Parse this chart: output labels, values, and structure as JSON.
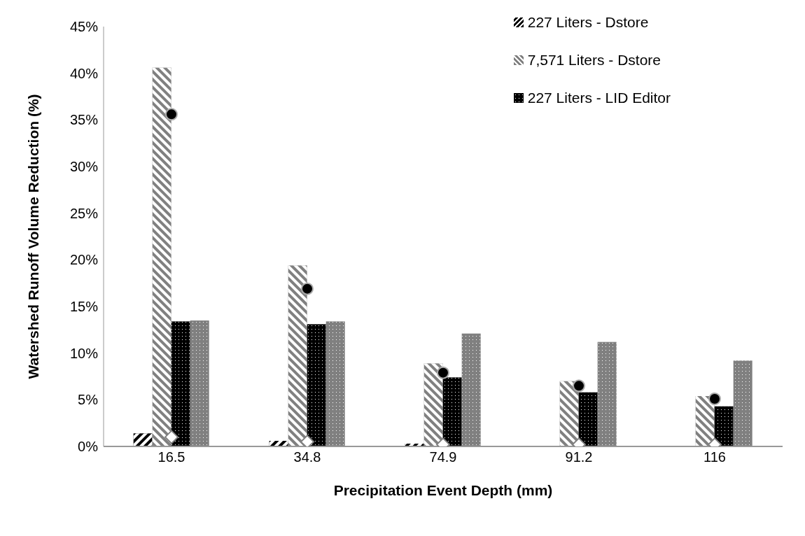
{
  "chart_data": {
    "type": "bar",
    "xlabel": "Precipitation Event Depth (mm)",
    "ylabel": "Watershed Runoff  Volume Reduction (%)",
    "categories": [
      "16.5",
      "34.8",
      "74.9",
      "91.2",
      "116"
    ],
    "series": [
      {
        "name": "227 Liters - Dstore",
        "color": "#000000",
        "values": [
          1.4,
          0.6,
          0.3,
          0,
          0
        ]
      },
      {
        "name": "7,571 Liters - Dstore",
        "color": "#808080",
        "values": [
          40.6,
          19.4,
          8.9,
          7.0,
          5.4
        ]
      },
      {
        "name": "227 Liters - LID Editor",
        "color": "#000000",
        "values": [
          13.4,
          13.1,
          7.4,
          5.8,
          4.3
        ]
      },
      {
        "color": "#808080",
        "values": [
          13.5,
          13.4,
          12.1,
          11.2,
          9.2
        ]
      },
      {
        "type": "scatter",
        "marker": "circle",
        "color": "#000000",
        "values": [
          35.6,
          16.9,
          7.9,
          6.5,
          5.1
        ]
      },
      {
        "type": "scatter",
        "marker": "diamond",
        "color": "#ffffff",
        "values": [
          1.0,
          0.5,
          0.2,
          0.2,
          0.2
        ]
      }
    ],
    "ylim": [
      0,
      45
    ],
    "yticks": [
      {
        "value": 0,
        "label": "0%"
      },
      {
        "value": 5,
        "label": "5%"
      },
      {
        "value": 10,
        "label": "10%"
      },
      {
        "value": 15,
        "label": "15%"
      },
      {
        "value": 20,
        "label": "20%"
      },
      {
        "value": 25,
        "label": "25%"
      },
      {
        "value": 30,
        "label": "30%"
      },
      {
        "value": 35,
        "label": "35%"
      },
      {
        "value": 40,
        "label": "40%"
      },
      {
        "value": 45,
        "label": "45%"
      }
    ],
    "grid": false,
    "legend": "top right"
  }
}
